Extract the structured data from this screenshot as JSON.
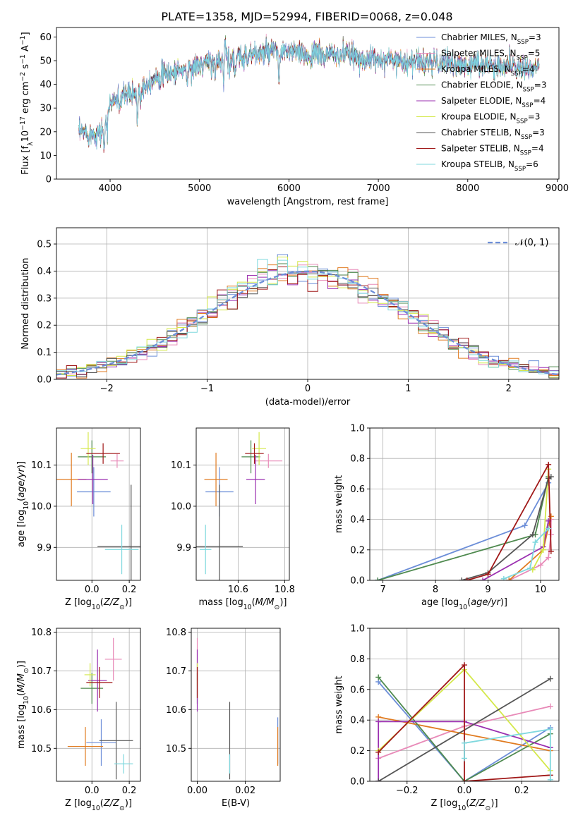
{
  "figure_title": "PLATE=1358, MJD=52994, FIBERID=0068, z=0.048",
  "colors": {
    "chabrier_miles": "#6c8ed8",
    "salpeter_miles": "#e88ab8",
    "kroupa_miles": "#e07b20",
    "chabrier_elodie": "#4f8a4f",
    "salpeter_elodie": "#9b2fb0",
    "kroupa_elodie": "#d4e84a",
    "chabrier_stelib": "#555555",
    "salpeter_stelib": "#a01818",
    "kroupa_stelib": "#7fd8de",
    "normal_curve": "#6c8ed8"
  },
  "chart_data": [
    {
      "id": "spectrum",
      "type": "line",
      "title": "",
      "xlabel": "wavelength [Angstrom, rest frame]",
      "ylabel": "Flux [f_λ10^-17 erg cm^-2 s^-1 A^-1]",
      "xlim": [
        3400,
        9020
      ],
      "ylim": [
        0,
        64
      ],
      "xticks": [
        4000,
        5000,
        6000,
        7000,
        8000,
        9000
      ],
      "yticks": [
        0,
        10,
        20,
        30,
        40,
        50,
        60
      ],
      "grid": false,
      "legend_position": "top-right",
      "legend": [
        {
          "label": "Chabrier MILES, N",
          "sub": "SSP",
          "suffix": "=3",
          "color_key": "chabrier_miles"
        },
        {
          "label": "Salpeter MILES, N",
          "sub": "SSP",
          "suffix": "=5",
          "color_key": "salpeter_miles"
        },
        {
          "label": "Kroupa MILES, N",
          "sub": "SSP",
          "suffix": "=4",
          "color_key": "kroupa_miles"
        },
        {
          "label": "Chabrier ELODIE, N",
          "sub": "SSP",
          "suffix": "=3",
          "color_key": "chabrier_elodie"
        },
        {
          "label": "Salpeter ELODIE, N",
          "sub": "SSP",
          "suffix": "=4",
          "color_key": "salpeter_elodie"
        },
        {
          "label": "Kroupa ELODIE, N",
          "sub": "SSP",
          "suffix": "=3",
          "color_key": "kroupa_elodie"
        },
        {
          "label": "Chabrier STELIB, N",
          "sub": "SSP",
          "suffix": "=3",
          "color_key": "chabrier_stelib"
        },
        {
          "label": "Salpeter STELIB, N",
          "sub": "SSP",
          "suffix": "=4",
          "color_key": "salpeter_stelib"
        },
        {
          "label": "Kroupa STELIB, N",
          "sub": "SSP",
          "suffix": "=6",
          "color_key": "kroupa_stelib"
        }
      ],
      "continuum": {
        "x": [
          3650,
          3700,
          3800,
          3900,
          3950,
          4000,
          4100,
          4200,
          4300,
          4400,
          4500,
          4600,
          4700,
          4800,
          4900,
          5000,
          5100,
          5200,
          5300,
          5400,
          5500,
          5600,
          5700,
          5800,
          5900,
          6000,
          6100,
          6200,
          6300,
          6400,
          6500,
          6600,
          6700,
          6800,
          6900,
          7000,
          7100,
          7200,
          7300,
          7400,
          7500,
          7600,
          7700,
          7800,
          7900,
          8000,
          8100,
          8200,
          8300,
          8400,
          8500,
          8600,
          8700,
          8800
        ],
        "y": [
          19,
          20,
          19,
          20,
          25,
          32,
          35,
          35,
          37,
          40,
          43,
          44,
          45,
          46,
          47,
          48,
          49,
          50,
          52,
          50,
          52,
          53,
          53,
          54,
          53,
          54,
          53,
          52,
          53,
          52,
          53,
          53,
          52,
          51,
          50,
          51,
          50,
          51,
          49,
          50,
          49,
          50,
          49,
          49,
          48,
          48,
          49,
          49,
          47,
          48,
          49,
          47,
          47,
          48
        ]
      },
      "absorption_features": [
        {
          "x": 3934,
          "depth": 12
        },
        {
          "x": 3969,
          "depth": 10
        },
        {
          "x": 4102,
          "depth": 8
        },
        {
          "x": 4304,
          "depth": 12
        },
        {
          "x": 4340,
          "depth": 7
        },
        {
          "x": 4861,
          "depth": 6
        },
        {
          "x": 5175,
          "depth": 9
        },
        {
          "x": 5270,
          "depth": 10
        },
        {
          "x": 5335,
          "depth": 7
        },
        {
          "x": 5400,
          "depth": 6
        },
        {
          "x": 5890,
          "depth": 13
        },
        {
          "x": 6563,
          "depth": 5
        },
        {
          "x": 7600,
          "depth": 4
        },
        {
          "x": 8542,
          "depth": 5
        }
      ],
      "emission_features": [
        {
          "x": 5285,
          "height": 9
        },
        {
          "x": 5330,
          "height": 6
        },
        {
          "x": 4200,
          "height": 4
        }
      ],
      "masked_drops": [
        {
          "color_key": "kroupa_elodie",
          "x": 3900
        },
        {
          "color_key": "kroupa_elodie",
          "x": 6800
        },
        {
          "color_key": "salpeter_miles",
          "x": 7420
        },
        {
          "color_key": "kroupa_miles",
          "x": 7420
        },
        {
          "color_key": "salpeter_stelib",
          "x": 7420
        }
      ]
    },
    {
      "id": "residuals",
      "type": "histogram",
      "title": "",
      "xlabel": "(data-model)/error",
      "ylabel": "Normed distribution",
      "xlim": [
        -2.5,
        2.5
      ],
      "ylim": [
        0,
        0.56
      ],
      "xticks": [
        -2,
        -1,
        0,
        1,
        2
      ],
      "yticks": [
        0.0,
        0.1,
        0.2,
        0.3,
        0.4,
        0.5
      ],
      "grid": true,
      "legend_position": "top-right",
      "legend_label": "𝒩(0, 1)",
      "bin_width": 0.1,
      "n_series": 9
    },
    {
      "id": "age_vs_Z",
      "type": "errorbar",
      "xlabel": "Z [log₁₀(Z/Z⊙)]",
      "ylabel": "age  [log₁₀(age/yr)]",
      "xlim": [
        -0.19,
        0.26
      ],
      "ylim": [
        9.82,
        10.19
      ],
      "xticks": [
        0.0,
        0.2
      ],
      "yticks": [
        9.9,
        10.0,
        10.1
      ],
      "grid": true,
      "points": [
        {
          "color_key": "chabrier_miles",
          "x": 0.01,
          "xerr": 0.09,
          "y": 10.035,
          "yerr": 0.06
        },
        {
          "color_key": "salpeter_miles",
          "x": 0.135,
          "xerr": 0.035,
          "y": 10.11,
          "yerr": 0.017
        },
        {
          "color_key": "kroupa_miles",
          "x": -0.11,
          "xerr": 0.08,
          "y": 10.065,
          "yerr": 0.065
        },
        {
          "color_key": "chabrier_elodie",
          "x": 0.0,
          "xerr": 0.075,
          "y": 10.12,
          "yerr": 0.04
        },
        {
          "color_key": "salpeter_elodie",
          "x": 0.005,
          "xerr": 0.08,
          "y": 10.065,
          "yerr": 0.06
        },
        {
          "color_key": "kroupa_elodie",
          "x": -0.02,
          "xerr": 0.04,
          "y": 10.14,
          "yerr": 0.04
        },
        {
          "color_key": "chabrier_stelib",
          "x": 0.21,
          "xerr": 0.18,
          "y": 9.902,
          "yerr": 0.15
        },
        {
          "color_key": "salpeter_stelib",
          "x": 0.06,
          "xerr": 0.09,
          "y": 10.128,
          "yerr": 0.025
        },
        {
          "color_key": "kroupa_stelib",
          "x": 0.16,
          "xerr": 0.09,
          "y": 9.895,
          "yerr": 0.06
        }
      ]
    },
    {
      "id": "age_vs_mass",
      "type": "errorbar",
      "xlabel": "mass [log₁₀(M/M⊙)]",
      "ylabel": "",
      "xlim": [
        10.42,
        10.82
      ],
      "ylim": [
        9.82,
        10.19
      ],
      "xticks": [
        10.6,
        10.8
      ],
      "yticks": [
        9.9,
        10.0,
        10.1
      ],
      "grid": true,
      "points": [
        {
          "color_key": "chabrier_miles",
          "x": 10.52,
          "xerr": 0.06,
          "y": 10.035,
          "yerr": 0.06
        },
        {
          "color_key": "salpeter_miles",
          "x": 10.73,
          "xerr": 0.06,
          "y": 10.11,
          "yerr": 0.017
        },
        {
          "color_key": "kroupa_miles",
          "x": 10.505,
          "xerr": 0.05,
          "y": 10.065,
          "yerr": 0.065
        },
        {
          "color_key": "chabrier_elodie",
          "x": 10.655,
          "xerr": 0.04,
          "y": 10.12,
          "yerr": 0.04
        },
        {
          "color_key": "salpeter_elodie",
          "x": 10.675,
          "xerr": 0.04,
          "y": 10.065,
          "yerr": 0.06
        },
        {
          "color_key": "kroupa_elodie",
          "x": 10.69,
          "xerr": 0.03,
          "y": 10.14,
          "yerr": 0.04
        },
        {
          "color_key": "chabrier_stelib",
          "x": 10.52,
          "xerr": 0.1,
          "y": 9.902,
          "yerr": 0.15
        },
        {
          "color_key": "salpeter_stelib",
          "x": 10.67,
          "xerr": 0.04,
          "y": 10.128,
          "yerr": 0.025
        },
        {
          "color_key": "kroupa_stelib",
          "x": 10.46,
          "xerr": 0.025,
          "y": 9.895,
          "yerr": 0.06
        }
      ]
    },
    {
      "id": "weight_vs_age",
      "type": "line",
      "xlabel": "age  [log₁₀(age/yr)]",
      "ylabel": "mass weight",
      "xlim": [
        6.75,
        10.35
      ],
      "ylim": [
        0,
        1
      ],
      "xticks": [
        7,
        8,
        9,
        10
      ],
      "yticks": [
        0.0,
        0.2,
        0.4,
        0.6,
        0.8,
        1.0
      ],
      "grid": true,
      "series": [
        {
          "color_key": "chabrier_miles",
          "x": [
            6.9,
            9.7,
            10.15
          ],
          "y": [
            0.0,
            0.36,
            0.64
          ]
        },
        {
          "color_key": "salpeter_miles",
          "x": [
            9.4,
            10.0,
            10.15,
            10.2,
            10.2
          ],
          "y": [
            0.0,
            0.1,
            0.15,
            0.3,
            0.4
          ]
        },
        {
          "color_key": "kroupa_miles",
          "x": [
            9.4,
            10.05,
            10.2
          ],
          "y": [
            0.0,
            0.2,
            0.42
          ]
        },
        {
          "color_key": "chabrier_elodie",
          "x": [
            6.9,
            9.9,
            10.15
          ],
          "y": [
            0.0,
            0.3,
            0.68
          ]
        },
        {
          "color_key": "salpeter_elodie",
          "x": [
            8.9,
            10.05,
            10.15
          ],
          "y": [
            0.0,
            0.22,
            0.39
          ]
        },
        {
          "color_key": "kroupa_elodie",
          "x": [
            9.85,
            10.05,
            10.15
          ],
          "y": [
            0.07,
            0.2,
            0.73
          ]
        },
        {
          "color_key": "chabrier_stelib",
          "x": [
            8.5,
            9.0,
            9.85,
            10.15,
            10.2
          ],
          "y": [
            0.0,
            0.05,
            0.3,
            0.67,
            0.68
          ]
        },
        {
          "color_key": "salpeter_stelib",
          "x": [
            8.6,
            9.0,
            10.15,
            10.2
          ],
          "y": [
            0.0,
            0.04,
            0.76,
            0.19
          ]
        },
        {
          "color_key": "kroupa_stelib",
          "x": [
            9.3,
            9.8,
            9.9,
            10.15
          ],
          "y": [
            0.01,
            0.08,
            0.25,
            0.34
          ]
        }
      ]
    },
    {
      "id": "mass_vs_Z",
      "type": "errorbar",
      "xlabel": "Z [log₁₀(Z/Z⊙)]",
      "ylabel": "mass [log₁₀(M/M⊙)]",
      "xlim": [
        -0.19,
        0.26
      ],
      "ylim": [
        10.415,
        10.81
      ],
      "xticks": [
        0.0,
        0.2
      ],
      "yticks": [
        10.5,
        10.6,
        10.7,
        10.8
      ],
      "grid": true,
      "points": [
        {
          "color_key": "chabrier_miles",
          "x": 0.05,
          "xerr": 0.08,
          "y": 10.515,
          "yerr": 0.06
        },
        {
          "color_key": "salpeter_miles",
          "x": 0.115,
          "xerr": 0.045,
          "y": 10.73,
          "yerr": 0.055
        },
        {
          "color_key": "kroupa_miles",
          "x": -0.035,
          "xerr": 0.095,
          "y": 10.505,
          "yerr": 0.05
        },
        {
          "color_key": "chabrier_elodie",
          "x": 0.0,
          "xerr": 0.06,
          "y": 10.655,
          "yerr": 0.04
        },
        {
          "color_key": "salpeter_elodie",
          "x": 0.03,
          "xerr": 0.05,
          "y": 10.675,
          "yerr": 0.08
        },
        {
          "color_key": "kroupa_elodie",
          "x": -0.01,
          "xerr": 0.03,
          "y": 10.69,
          "yerr": 0.03
        },
        {
          "color_key": "chabrier_stelib",
          "x": 0.13,
          "xerr": 0.09,
          "y": 10.52,
          "yerr": 0.1
        },
        {
          "color_key": "salpeter_stelib",
          "x": 0.04,
          "xerr": 0.07,
          "y": 10.67,
          "yerr": 0.04
        },
        {
          "color_key": "kroupa_stelib",
          "x": 0.17,
          "xerr": 0.05,
          "y": 10.46,
          "yerr": 0.025
        }
      ]
    },
    {
      "id": "mass_vs_ebv",
      "type": "errorbar",
      "xlabel": "E(B-V)",
      "ylabel": "",
      "xlim": [
        -0.0025,
        0.0345
      ],
      "ylim": [
        10.415,
        10.81
      ],
      "xticks": [
        0.0,
        0.02
      ],
      "yticks": [
        10.5,
        10.6,
        10.7,
        10.8
      ],
      "grid": true,
      "points": [
        {
          "color_key": "chabrier_miles",
          "x": 0.0335,
          "xerr": 0,
          "y": 10.52,
          "yerr": 0.06
        },
        {
          "color_key": "salpeter_miles",
          "x": 0.0,
          "xerr": 0,
          "y": 10.73,
          "yerr": 0.055
        },
        {
          "color_key": "kroupa_miles",
          "x": 0.0335,
          "xerr": 0,
          "y": 10.505,
          "yerr": 0.05
        },
        {
          "color_key": "chabrier_elodie",
          "x": 0.0,
          "xerr": 0,
          "y": 10.655,
          "yerr": 0.04
        },
        {
          "color_key": "salpeter_elodie",
          "x": 0.0,
          "xerr": 0,
          "y": 10.675,
          "yerr": 0.08
        },
        {
          "color_key": "kroupa_elodie",
          "x": 0.0,
          "xerr": 0,
          "y": 10.69,
          "yerr": 0.03
        },
        {
          "color_key": "chabrier_stelib",
          "x": 0.0135,
          "xerr": 0,
          "y": 10.52,
          "yerr": 0.1
        },
        {
          "color_key": "salpeter_stelib",
          "x": 0.0,
          "xerr": 0,
          "y": 10.67,
          "yerr": 0.04
        },
        {
          "color_key": "kroupa_stelib",
          "x": 0.0135,
          "xerr": 0,
          "y": 10.46,
          "yerr": 0.025
        }
      ]
    },
    {
      "id": "weight_vs_Z",
      "type": "line",
      "xlabel": "Z [log₁₀(Z/Z⊙)]",
      "ylabel": "mass weight",
      "xlim": [
        -0.33,
        0.33
      ],
      "ylim": [
        0,
        1
      ],
      "xticks": [
        -0.2,
        0.0,
        0.2
      ],
      "yticks": [
        0.0,
        0.2,
        0.4,
        0.6,
        0.8,
        1.0
      ],
      "grid": true,
      "series": [
        {
          "color_key": "chabrier_miles",
          "x": [
            -0.3,
            0.0,
            0.3
          ],
          "y": [
            0.65,
            0.0,
            0.35
          ]
        },
        {
          "color_key": "salpeter_miles",
          "x": [
            -0.3,
            0.0,
            0.3
          ],
          "y": [
            0.15,
            0.36,
            0.49
          ]
        },
        {
          "color_key": "kroupa_miles",
          "x": [
            -0.3,
            0.3
          ],
          "y": [
            0.42,
            0.2
          ]
        },
        {
          "color_key": "chabrier_elodie",
          "x": [
            -0.3,
            0.0,
            0.3
          ],
          "y": [
            0.68,
            0.0,
            0.31
          ]
        },
        {
          "color_key": "salpeter_elodie",
          "x": [
            -0.3,
            -0.3,
            0.0,
            0.3
          ],
          "y": [
            0.0,
            0.39,
            0.39,
            0.22
          ]
        },
        {
          "color_key": "kroupa_elodie",
          "x": [
            -0.3,
            0.0,
            0.3
          ],
          "y": [
            0.2,
            0.73,
            0.07
          ]
        },
        {
          "color_key": "chabrier_stelib",
          "x": [
            -0.3,
            0.3
          ],
          "y": [
            0.0,
            0.67
          ]
        },
        {
          "color_key": "salpeter_stelib",
          "x": [
            -0.3,
            0.0,
            0.0,
            0.3
          ],
          "y": [
            0.19,
            0.76,
            0.0,
            0.04
          ]
        },
        {
          "color_key": "kroupa_stelib",
          "x": [
            0.0,
            0.0,
            0.3,
            0.3
          ],
          "y": [
            0.15,
            0.25,
            0.34,
            0.01
          ]
        }
      ]
    }
  ]
}
